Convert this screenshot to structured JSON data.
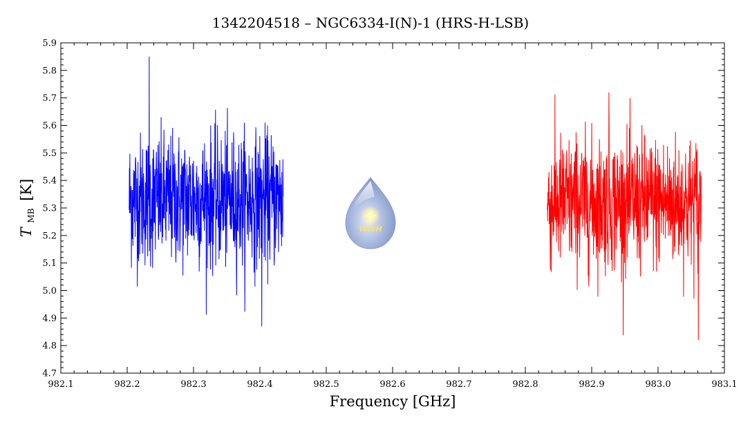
{
  "chart_data": {
    "type": "line",
    "title": "1342204518 – NGC6334-I(N)-1 (HRS-H-LSB)",
    "xlabel": "Frequency [GHz]",
    "ylabel_main": "T",
    "ylabel_sub": "MB",
    "ylabel_unit": "[K]",
    "xlim": [
      982.1,
      983.1
    ],
    "ylim": [
      4.7,
      5.9
    ],
    "x_ticks": [
      "982.1",
      "982.2",
      "982.3",
      "982.4",
      "982.5",
      "982.6",
      "982.7",
      "982.8",
      "982.9",
      "983.0",
      "983.1"
    ],
    "y_ticks": [
      "4.7",
      "4.8",
      "4.9",
      "5.0",
      "5.1",
      "5.2",
      "5.3",
      "5.4",
      "5.5",
      "5.6",
      "5.7",
      "5.8",
      "5.9"
    ],
    "grid": false,
    "series": [
      {
        "color": "#0000ff",
        "x_range": [
          982.203,
          982.435
        ],
        "mean": 5.33,
        "noise_rms": 0.15,
        "max": 5.85,
        "min": 4.87
      },
      {
        "color": "#ff0000",
        "x_range": [
          982.833,
          983.065
        ],
        "mean": 5.32,
        "noise_rms": 0.15,
        "max": 5.72,
        "min": 4.82
      }
    ]
  },
  "logo": {
    "text": "WISH",
    "icon": "wish-droplet-logo-icon"
  }
}
